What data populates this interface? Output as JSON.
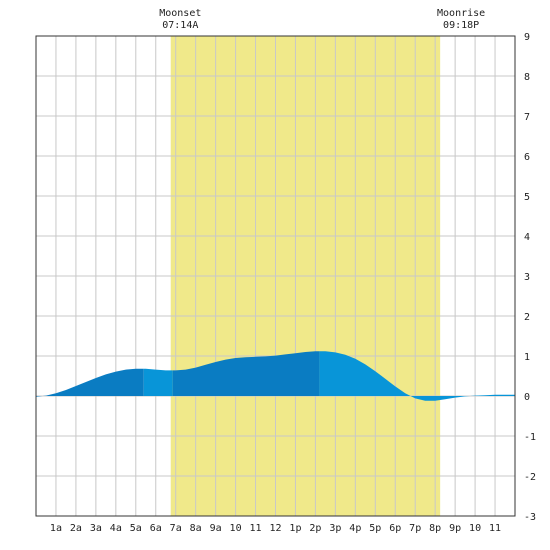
{
  "chart_data": {
    "type": "area",
    "annotations": [
      {
        "label": "Moonset",
        "time": "07:14A",
        "hour": 7.23
      },
      {
        "label": "Moonrise",
        "time": "09:18P",
        "hour": 21.3
      }
    ],
    "daylight_band": {
      "from_hour": 6.75,
      "to_hour": 20.25,
      "color": "#f0e98a"
    },
    "x_ticks": [
      {
        "hour": 1,
        "label": "1a"
      },
      {
        "hour": 2,
        "label": "2a"
      },
      {
        "hour": 3,
        "label": "3a"
      },
      {
        "hour": 4,
        "label": "4a"
      },
      {
        "hour": 5,
        "label": "5a"
      },
      {
        "hour": 6,
        "label": "6a"
      },
      {
        "hour": 7,
        "label": "7a"
      },
      {
        "hour": 8,
        "label": "8a"
      },
      {
        "hour": 9,
        "label": "9a"
      },
      {
        "hour": 10,
        "label": "10"
      },
      {
        "hour": 11,
        "label": "11"
      },
      {
        "hour": 12,
        "label": "12"
      },
      {
        "hour": 13,
        "label": "1p"
      },
      {
        "hour": 14,
        "label": "2p"
      },
      {
        "hour": 15,
        "label": "3p"
      },
      {
        "hour": 16,
        "label": "4p"
      },
      {
        "hour": 17,
        "label": "5p"
      },
      {
        "hour": 18,
        "label": "6p"
      },
      {
        "hour": 19,
        "label": "7p"
      },
      {
        "hour": 20,
        "label": "8p"
      },
      {
        "hour": 21,
        "label": "9p"
      },
      {
        "hour": 22,
        "label": "10"
      },
      {
        "hour": 23,
        "label": "11"
      }
    ],
    "y_ticks": [
      -3,
      -2,
      -1,
      0,
      1,
      2,
      3,
      4,
      5,
      6,
      7,
      8,
      9
    ],
    "xlim": [
      0,
      24
    ],
    "ylim": [
      -3,
      9
    ],
    "grid": true,
    "tide_curve": {
      "x": [
        0,
        0.5,
        1,
        1.5,
        2,
        2.5,
        3,
        3.5,
        4,
        4.5,
        5,
        5.5,
        6,
        6.5,
        7,
        7.5,
        8,
        8.5,
        9,
        9.5,
        10,
        10.5,
        11,
        11.5,
        12,
        12.5,
        13,
        13.5,
        14,
        14.5,
        15,
        15.5,
        16,
        16.5,
        17,
        17.5,
        18,
        18.5,
        19,
        19.5,
        20,
        20.5,
        21,
        21.5,
        22,
        22.5,
        23,
        23.5,
        24
      ],
      "y": [
        -0.02,
        0.01,
        0.07,
        0.15,
        0.25,
        0.35,
        0.45,
        0.54,
        0.61,
        0.66,
        0.68,
        0.68,
        0.66,
        0.64,
        0.64,
        0.66,
        0.71,
        0.78,
        0.85,
        0.91,
        0.95,
        0.97,
        0.98,
        0.99,
        1.01,
        1.04,
        1.07,
        1.1,
        1.12,
        1.12,
        1.09,
        1.03,
        0.93,
        0.79,
        0.62,
        0.43,
        0.24,
        0.07,
        -0.06,
        -0.12,
        -0.12,
        -0.08,
        -0.04,
        -0.01,
        0.01,
        0.02,
        0.03,
        0.03,
        0.03
      ]
    },
    "bands": [
      {
        "from_hour": 0,
        "to_hour": 5.4,
        "color": "#0a7cc2"
      },
      {
        "from_hour": 5.4,
        "to_hour": 6.85,
        "color": "#0895d8"
      },
      {
        "from_hour": 6.85,
        "to_hour": 14.2,
        "color": "#0a7cc2"
      },
      {
        "from_hour": 14.2,
        "to_hour": 24,
        "color": "#0895d8"
      }
    ],
    "colors": {
      "grid": "#c8c8c8",
      "frame": "#333333"
    }
  }
}
